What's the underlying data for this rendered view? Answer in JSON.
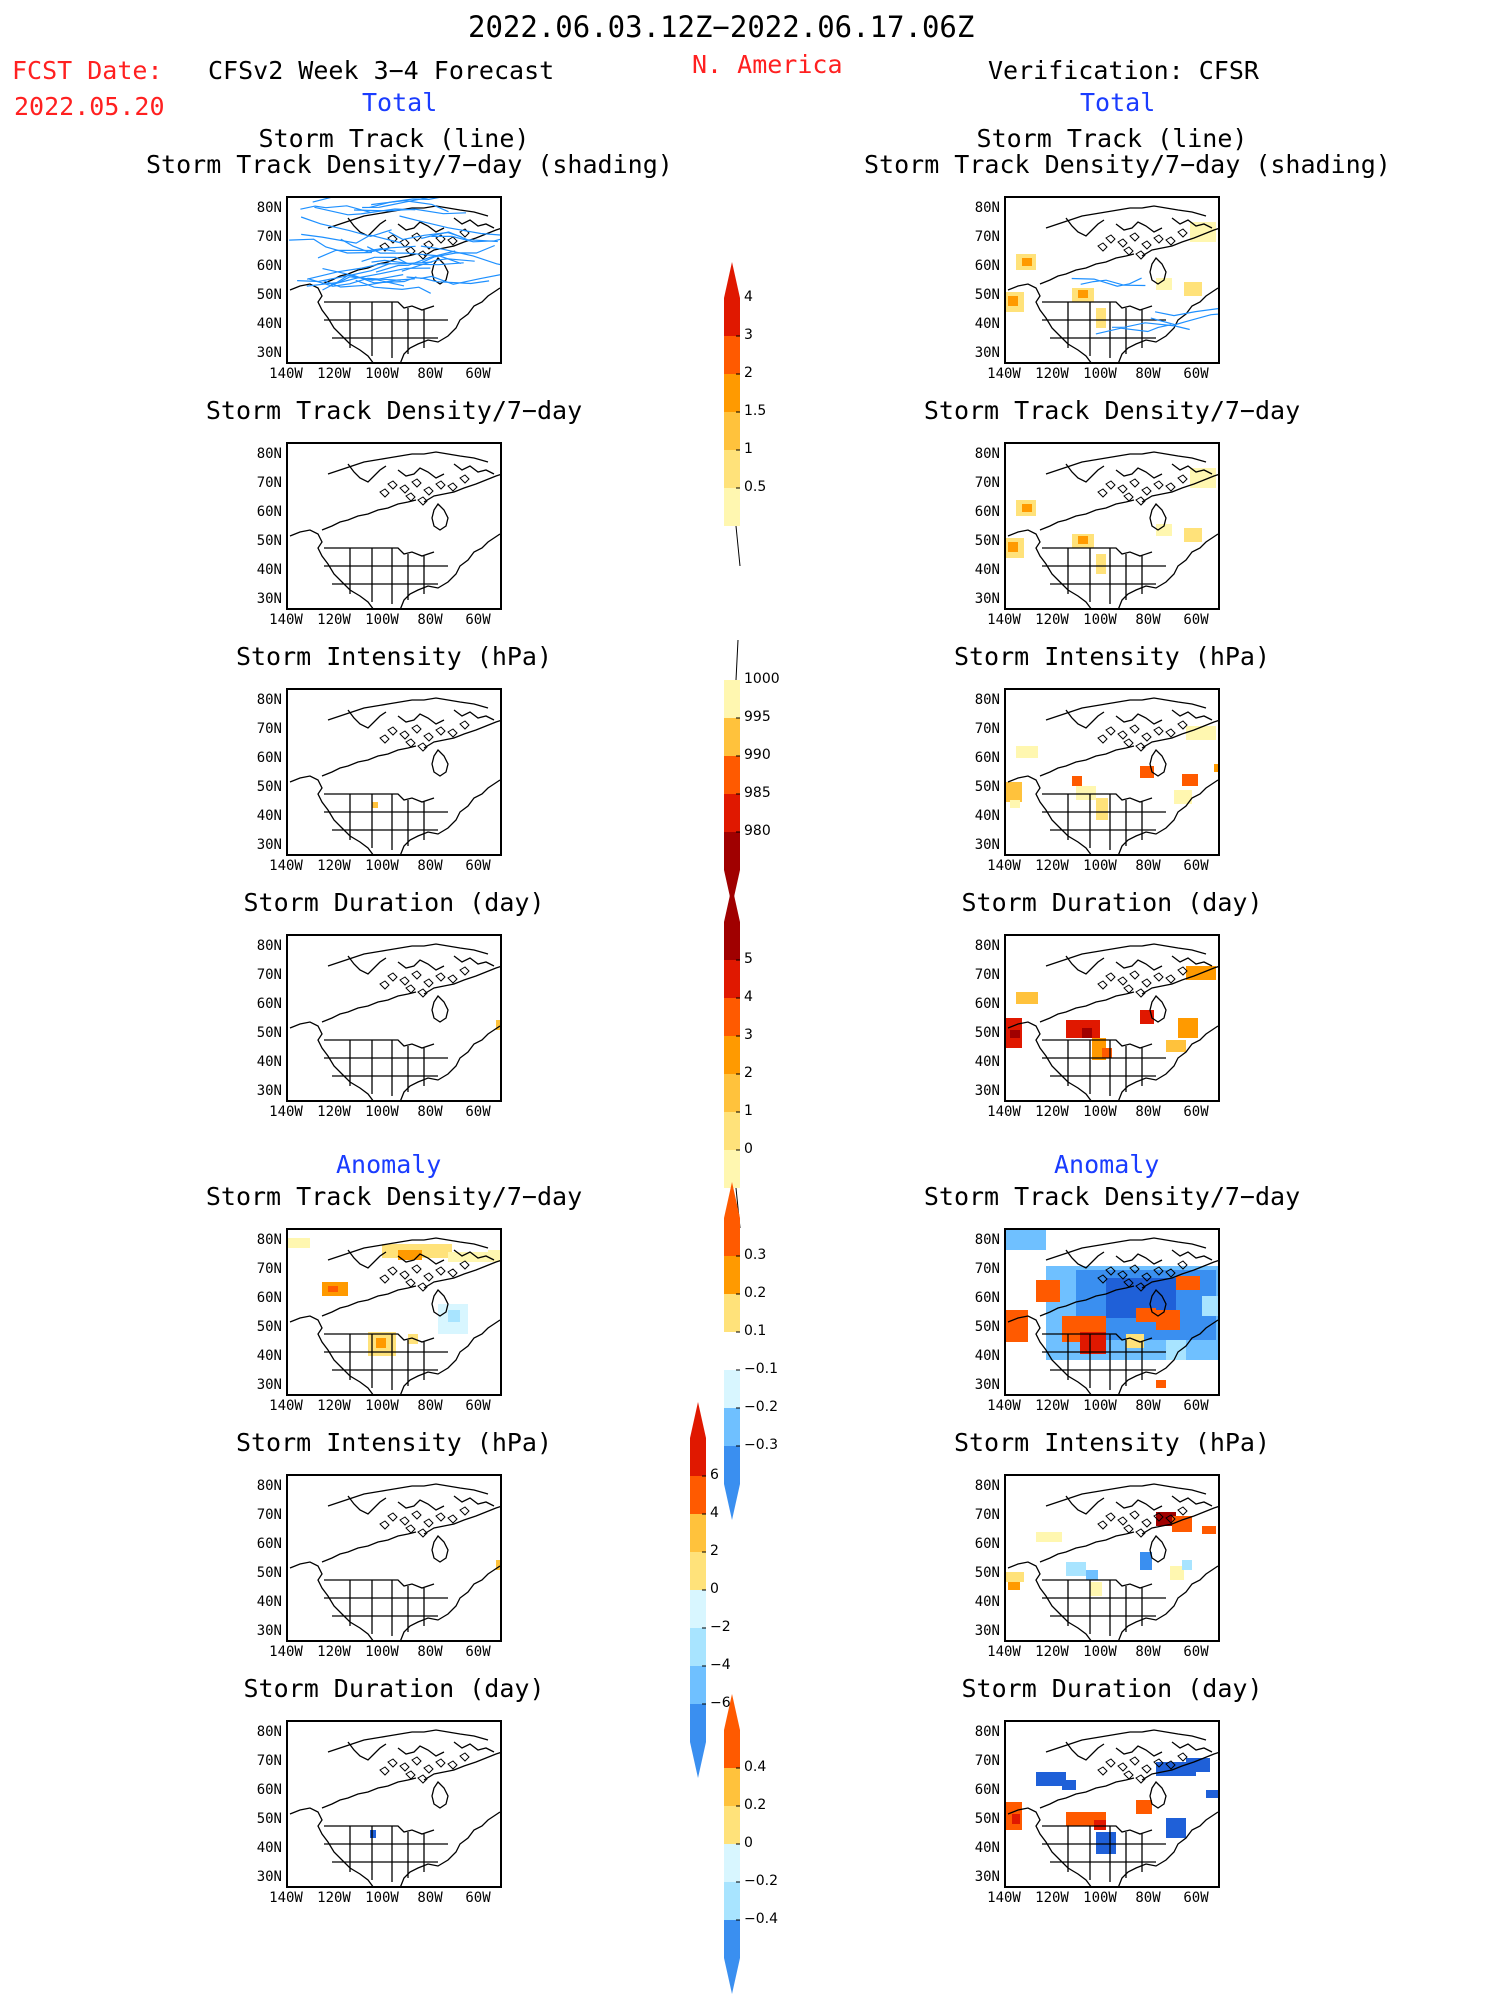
{
  "header": {
    "date_range": "2022.06.03.12Z−2022.06.17.06Z",
    "fcst_label": "FCST Date:",
    "fcst_date": "2022.05.20",
    "model_title": "CFSv2 Week 3−4 Forecast",
    "region": "N. America",
    "verification": "Verification: CFSR"
  },
  "sections": {
    "total": "Total",
    "anomaly": "Anomaly"
  },
  "panel_titles": {
    "track_line": "Storm Track (line)",
    "track_shading": "Storm Track Density/7−day (shading)",
    "density": "Storm Track Density/7−day",
    "intensity": "Storm Intensity (hPa)",
    "duration": "Storm Duration (day)"
  },
  "axes": {
    "lat_ticks": [
      "80N",
      "70N",
      "60N",
      "50N",
      "40N",
      "30N"
    ],
    "lon_ticks": [
      "140W",
      "120W",
      "100W",
      "80W",
      "60W"
    ]
  },
  "colorbars": {
    "density_total": [
      "0.5",
      "1",
      "1.5",
      "2",
      "3",
      "4"
    ],
    "intensity_total": [
      "1000",
      "995",
      "990",
      "985",
      "980"
    ],
    "duration_total": [
      "0",
      "1",
      "2",
      "3",
      "4",
      "5"
    ],
    "density_anom": [
      "0.3",
      "0.2",
      "0.1",
      "−0.1",
      "−0.2",
      "−0.3"
    ],
    "intensity_anom": [
      "6",
      "4",
      "2",
      "0",
      "−2",
      "−4",
      "−6"
    ],
    "duration_anom": [
      "0.4",
      "0.2",
      "0",
      "−0.2",
      "−0.4"
    ]
  },
  "colors": {
    "title_red": "#ff2020",
    "section_blue": "#1a3cff",
    "track_line": "#1e90ff",
    "warm": [
      "#fff7b0",
      "#ffe27a",
      "#ffc23c",
      "#ff9a00",
      "#ff5a00",
      "#e01800",
      "#a00000"
    ],
    "cool": [
      "#d8f6ff",
      "#a8e4ff",
      "#6fc0ff",
      "#3a8ff0",
      "#1f60d8"
    ]
  }
}
